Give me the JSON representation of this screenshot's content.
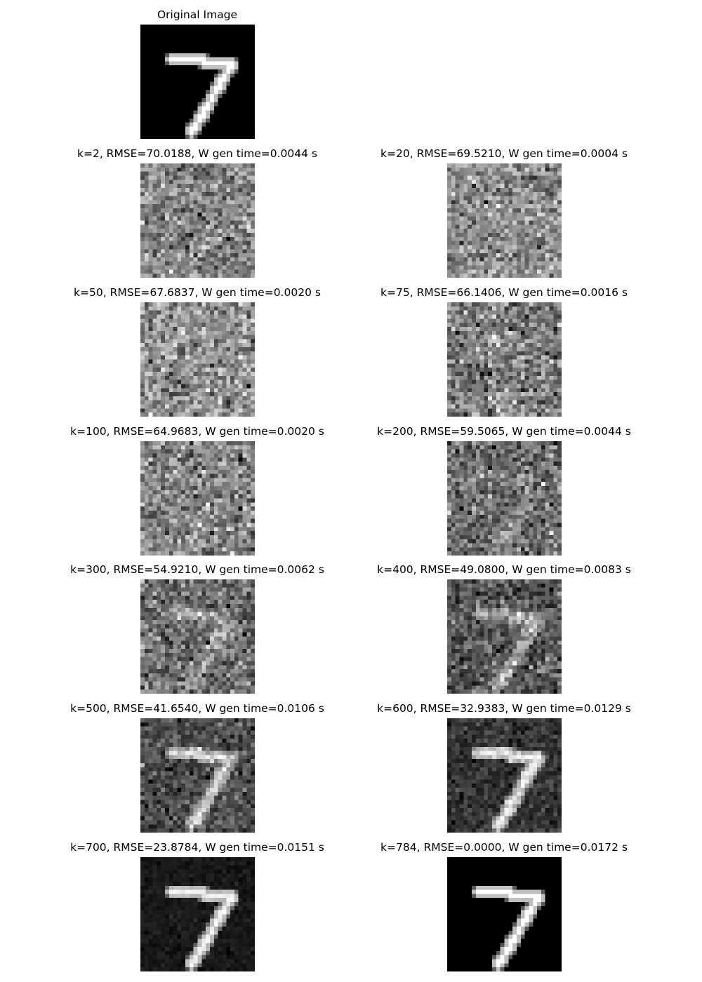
{
  "original": {
    "title": "Original Image"
  },
  "panels": [
    {
      "title": "k=2, RMSE=70.0188, W gen time=0.0044 s",
      "k": 2,
      "rmse": 70.0188,
      "time_s": 0.0044
    },
    {
      "title": "k=20, RMSE=69.5210, W gen time=0.0004 s",
      "k": 20,
      "rmse": 69.521,
      "time_s": 0.0004
    },
    {
      "title": "k=50, RMSE=67.6837, W gen time=0.0020 s",
      "k": 50,
      "rmse": 67.6837,
      "time_s": 0.002
    },
    {
      "title": "k=75, RMSE=66.1406, W gen time=0.0016 s",
      "k": 75,
      "rmse": 66.1406,
      "time_s": 0.0016
    },
    {
      "title": "k=100, RMSE=64.9683, W gen time=0.0020 s",
      "k": 100,
      "rmse": 64.9683,
      "time_s": 0.002
    },
    {
      "title": "k=200, RMSE=59.5065, W gen time=0.0044 s",
      "k": 200,
      "rmse": 59.5065,
      "time_s": 0.0044
    },
    {
      "title": "k=300, RMSE=54.9210, W gen time=0.0062 s",
      "k": 300,
      "rmse": 54.921,
      "time_s": 0.0062
    },
    {
      "title": "k=400, RMSE=49.0800, W gen time=0.0083 s",
      "k": 400,
      "rmse": 49.08,
      "time_s": 0.0083
    },
    {
      "title": "k=500, RMSE=41.6540, W gen time=0.0106 s",
      "k": 500,
      "rmse": 41.654,
      "time_s": 0.0106
    },
    {
      "title": "k=600, RMSE=32.9383, W gen time=0.0129 s",
      "k": 600,
      "rmse": 32.9383,
      "time_s": 0.0129
    },
    {
      "title": "k=700, RMSE=23.8784, W gen time=0.0151 s",
      "k": 700,
      "rmse": 23.8784,
      "time_s": 0.0151
    },
    {
      "title": "k=784, RMSE=0.0000, W gen time=0.0172 s",
      "k": 784,
      "rmse": 0.0,
      "time_s": 0.0172
    }
  ]
}
